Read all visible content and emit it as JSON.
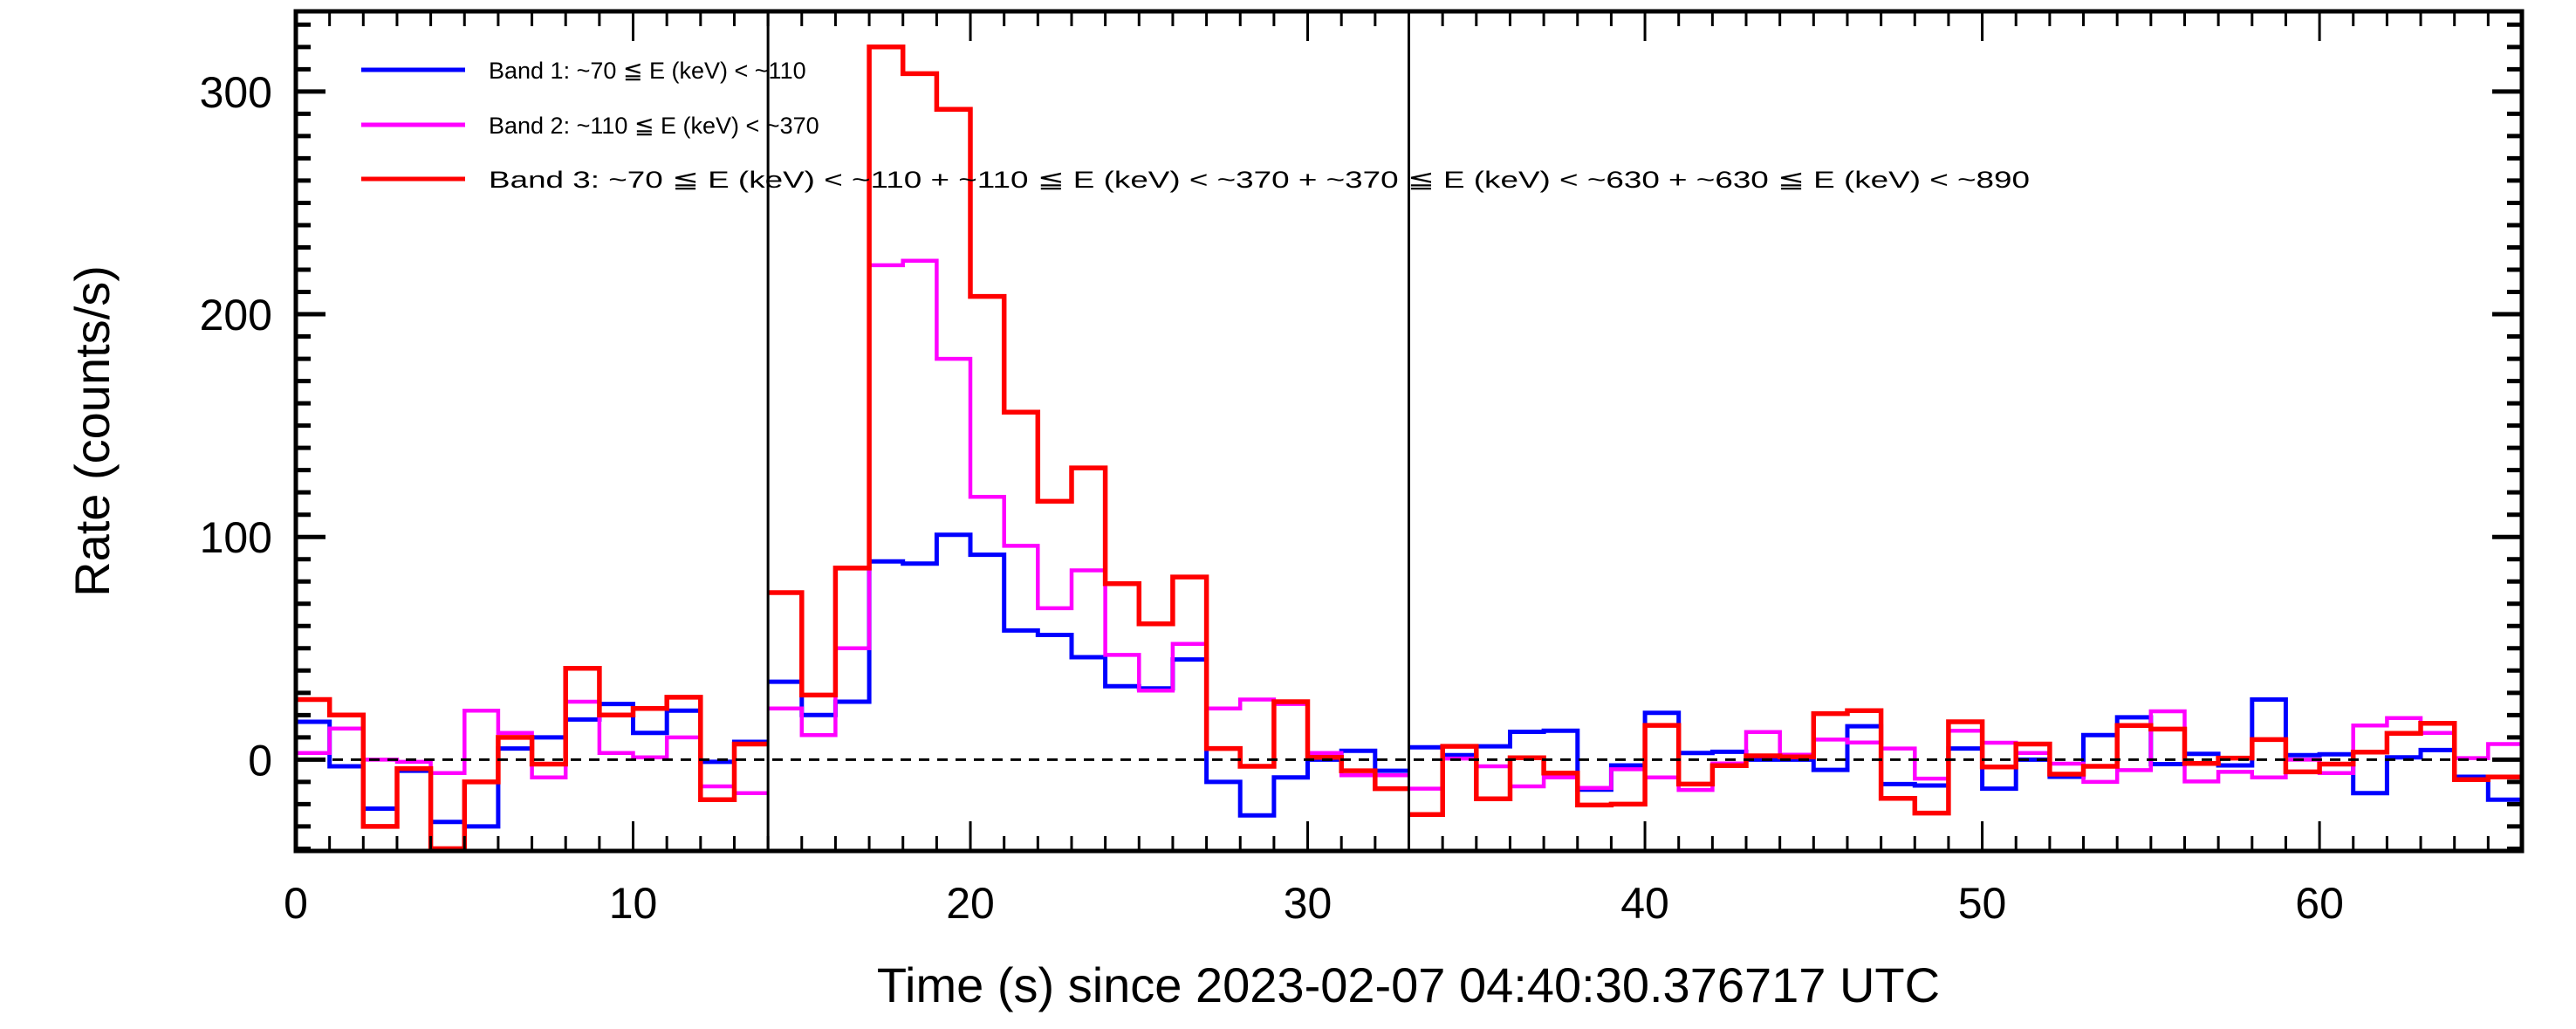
{
  "chart_data": {
    "type": "line",
    "style": "histogram-steps",
    "title": "",
    "xlabel": "Time (s) since 2023-02-07 04:40:30.376717 UTC",
    "ylabel": "Rate (counts/s)",
    "xlim": [
      0,
      66
    ],
    "ylim": [
      -41,
      336
    ],
    "xticks": [
      "0",
      "10",
      "20",
      "30",
      "40",
      "50",
      "60"
    ],
    "xtick_values": [
      0,
      10,
      20,
      30,
      40,
      50,
      60
    ],
    "yticks": [
      "0",
      "100",
      "200",
      "300"
    ],
    "ytick_values": [
      0,
      100,
      200,
      300
    ],
    "reference_line_y": 0,
    "vertical_markers": [
      14,
      33
    ],
    "legend_placement": "top-left",
    "segments": [
      {
        "start": 0,
        "bin_width": 1,
        "nbins": 14
      },
      {
        "start": 14,
        "bin_width": 1,
        "nbins": 19
      },
      {
        "start": 33,
        "bin_width": 1,
        "nbins": 33
      }
    ],
    "series": [
      {
        "name": "Band 1: ~70 ≦ E (keV) < ~110",
        "color": "#0000ff",
        "values": [
          [
            17,
            -3,
            -22,
            -5,
            -28,
            -30,
            5,
            10,
            18,
            25,
            12,
            22,
            -1,
            8
          ],
          [
            35,
            20,
            26,
            89,
            88,
            101,
            92,
            58,
            56,
            46,
            33,
            32,
            45,
            -10,
            -25,
            -8,
            0,
            4,
            -5
          ],
          [
            5.5,
            2,
            6,
            12.5,
            13,
            -13.5,
            -2.6,
            21,
            3,
            3.5,
            0,
            0,
            -4.6,
            15,
            -11,
            -11.6,
            5,
            -13,
            0,
            -7.7,
            11,
            19,
            -2,
            2.6,
            -2.6,
            27,
            2,
            2.4,
            -15,
            1,
            4.3,
            -7.7,
            -18
          ]
        ]
      },
      {
        "name": "Band 2: ~110 ≦ E (keV) < ~370",
        "color": "#ff00ff",
        "values": [
          [
            3,
            14,
            0,
            -1,
            -6,
            22,
            12,
            -8,
            26,
            3,
            1,
            10,
            -12,
            -15
          ],
          [
            23,
            11,
            50,
            222,
            224,
            180,
            118,
            96,
            68,
            85,
            47,
            31,
            52,
            23,
            27,
            25,
            3,
            -7,
            -7
          ],
          [
            -13,
            0.5,
            -3,
            -12,
            -8,
            -12.7,
            -4.3,
            -8,
            -13.6,
            -1.7,
            12.4,
            2.2,
            9,
            7.7,
            5,
            -8.5,
            13,
            7.6,
            3,
            -1.8,
            -10,
            -4.7,
            21.7,
            -9.8,
            -5.5,
            -8,
            0,
            -6,
            15.3,
            18.7,
            12,
            0.7,
            7
          ]
        ]
      },
      {
        "name": "Band 3: ~70 ≦ E (keV) < ~110 + ~110 ≦ E (keV) < ~370 + ~370 ≦ E (keV) < ~630 + ~630 ≦ E (keV) < ~890",
        "color": "#ff0000",
        "values": [
          [
            27,
            20,
            -30,
            -4,
            -40,
            -10,
            10,
            -2,
            41,
            20,
            23,
            28,
            -18,
            7
          ],
          [
            75,
            29,
            86,
            320,
            308,
            292,
            208,
            156,
            116,
            131,
            79,
            61,
            82,
            5,
            -3,
            26,
            1,
            -5,
            -13
          ],
          [
            -24.6,
            6,
            -17.6,
            0.8,
            -6,
            -20.4,
            -20,
            15.4,
            -11,
            -2.7,
            1.7,
            1.2,
            20.7,
            22,
            -17.4,
            -24,
            17,
            -3.3,
            7,
            -6.5,
            -3,
            15.3,
            13.7,
            -1.7,
            0.7,
            9,
            -5.5,
            -2,
            3.4,
            11.8,
            16.3,
            -9,
            -7.8
          ]
        ]
      }
    ]
  }
}
